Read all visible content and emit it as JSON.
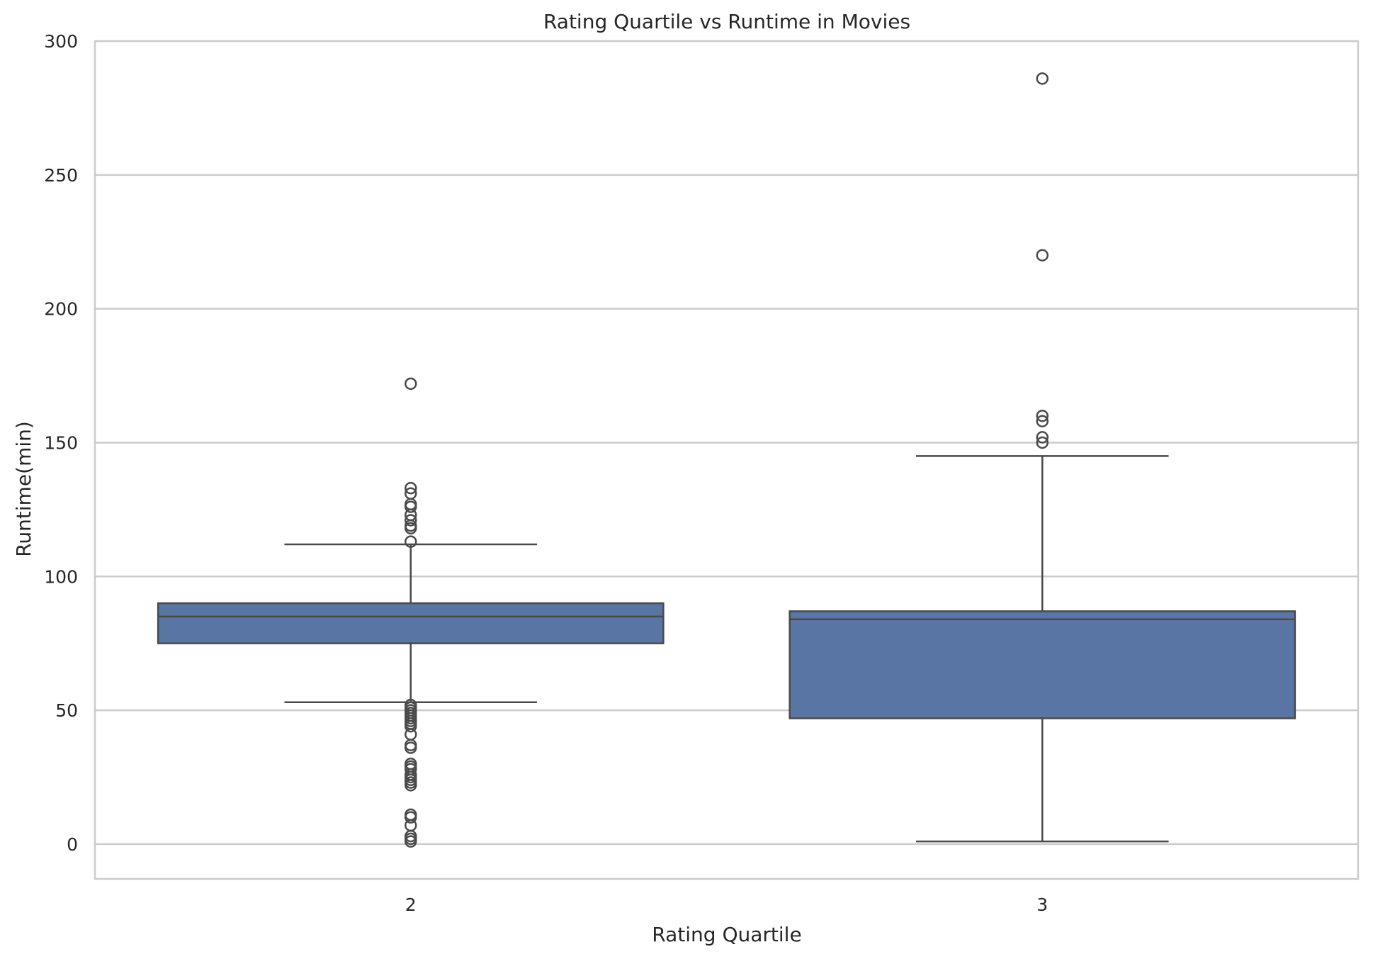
{
  "chart_data": {
    "type": "box",
    "title": "Rating Quartile vs Runtime in Movies",
    "xlabel": "Rating Quartile",
    "ylabel": "Runtime(min)",
    "ylim": [
      -13,
      300
    ],
    "yticks": [
      0,
      50,
      100,
      150,
      200,
      250,
      300
    ],
    "categories": [
      "2",
      "3"
    ],
    "grid": "horizontal",
    "box_color": "#5975a4",
    "edge_color": "#4a4a4a",
    "series": [
      {
        "category": "2",
        "whisker_low": 53,
        "q1": 75,
        "median": 85,
        "q3": 90,
        "whisker_high": 112,
        "outliers": [
          172,
          133,
          131,
          127,
          126,
          123,
          121,
          119,
          118,
          113,
          52,
          51,
          50,
          49,
          48,
          47,
          46,
          45,
          44,
          41,
          37,
          36,
          30,
          29,
          28,
          26,
          25,
          24,
          23,
          22,
          11,
          10,
          7,
          3,
          2,
          1
        ]
      },
      {
        "category": "3",
        "whisker_low": 1,
        "q1": 47,
        "median": 84,
        "q3": 87,
        "whisker_high": 145,
        "outliers": [
          286,
          220,
          160,
          158,
          152,
          150
        ]
      }
    ]
  }
}
